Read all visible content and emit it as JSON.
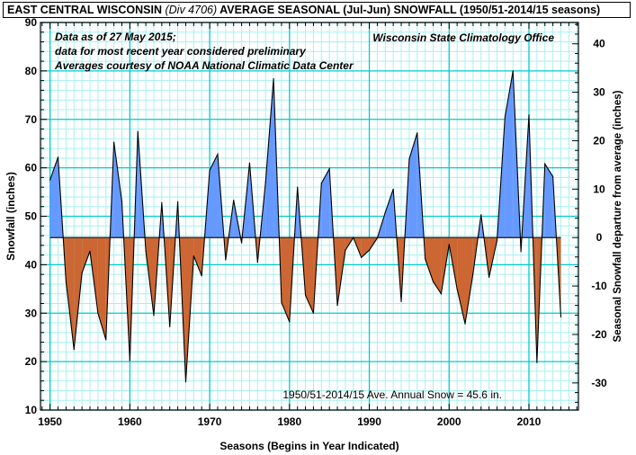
{
  "chart_data": {
    "type": "area",
    "title_parts": {
      "region": "EAST CENTRAL WISCONSIN",
      "division": "(Div 4706)",
      "rest": "AVERAGE SEASONAL (Jul-Jun) SNOWFALL (1950/51-2014/15 seasons)"
    },
    "xlabel": "Seasons (Begins in Year Indicated)",
    "ylabel": "Snowfall (inches)",
    "y2label": "Seasonal Snowfall departure from average (inches)",
    "xlim": [
      1948.8,
      2016.2
    ],
    "ylim": [
      10,
      90
    ],
    "xticks": [
      1950,
      1960,
      1970,
      1980,
      1990,
      2000,
      2010
    ],
    "yticks": [
      10,
      20,
      30,
      40,
      50,
      60,
      70,
      80,
      90
    ],
    "y2ticks": [
      -30,
      -20,
      -10,
      0,
      10,
      20,
      30,
      40
    ],
    "average": 45.6,
    "annotations": {
      "note_lines": [
        "Data as of 27 May 2015;",
        "data for most recent year considered preliminary",
        "Averages courtesy of NOAA National Climatic Data Center"
      ],
      "source": "Wisconsin State Climatology Office",
      "average_label": "1950/51-2014/15 Ave. Annual Snow = 45.6 in."
    },
    "colors": {
      "above": "#6699ff",
      "below": "#cc6633",
      "grid": "#00cccc",
      "minor_grid": "#a8f0f0",
      "line": "#000000"
    },
    "x": [
      1950,
      1951,
      1952,
      1953,
      1954,
      1955,
      1956,
      1957,
      1958,
      1959,
      1960,
      1961,
      1962,
      1963,
      1964,
      1965,
      1966,
      1967,
      1968,
      1969,
      1970,
      1971,
      1972,
      1973,
      1974,
      1975,
      1976,
      1977,
      1978,
      1979,
      1980,
      1981,
      1982,
      1983,
      1984,
      1985,
      1986,
      1987,
      1988,
      1989,
      1990,
      1991,
      1992,
      1993,
      1994,
      1995,
      1996,
      1997,
      1998,
      1999,
      2000,
      2001,
      2002,
      2003,
      2004,
      2005,
      2006,
      2007,
      2008,
      2009,
      2010,
      2011,
      2012,
      2013,
      2014
    ],
    "values": [
      57.5,
      62.2,
      36.5,
      22.5,
      38.3,
      42.8,
      30,
      24.5,
      65.3,
      53,
      20.2,
      67.5,
      42.8,
      29.5,
      52.8,
      27.2,
      53,
      15.8,
      41.8,
      37.7,
      59.5,
      62.8,
      41,
      53.3,
      44.5,
      61,
      40.5,
      57,
      78.4,
      32.2,
      28.2,
      56,
      33.7,
      30,
      56.8,
      59.8,
      31.6,
      43,
      45.6,
      41.5,
      43,
      45.5,
      50.8,
      55.6,
      32.4,
      61.8,
      67.2,
      41.2,
      36.5,
      34,
      44.2,
      35,
      27.8,
      38.2,
      50.3,
      37.4,
      45,
      70.5,
      80,
      42.7,
      70.9,
      19.8,
      60.8,
      58.2,
      29.2
    ]
  }
}
